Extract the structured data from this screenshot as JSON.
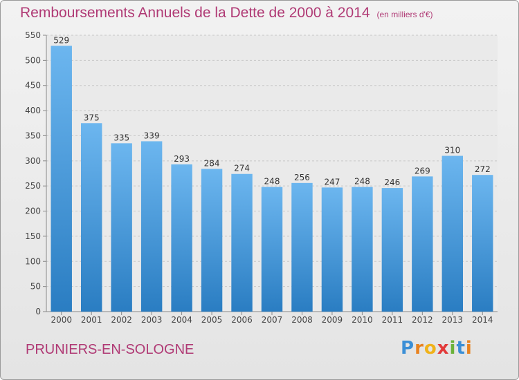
{
  "header": {
    "title": "Remboursements Annuels de la Dette de 2000 à 2014",
    "unit": "(en milliers d'€)"
  },
  "footer": {
    "commune": "PRUNIERS-EN-SOLOGNE",
    "brand": "Proxiti"
  },
  "colors": {
    "title": "#b03a75",
    "bar_top": "#6cb6ef",
    "bar_bottom": "#2a7dc2",
    "grid": "#c8c8c8"
  },
  "chart_data": {
    "type": "bar",
    "categories": [
      "2000",
      "2001",
      "2002",
      "2003",
      "2004",
      "2005",
      "2006",
      "2007",
      "2008",
      "2009",
      "2010",
      "2011",
      "2012",
      "2013",
      "2014"
    ],
    "values": [
      529,
      375,
      335,
      339,
      293,
      284,
      274,
      248,
      256,
      247,
      248,
      246,
      269,
      310,
      272
    ],
    "title": "Remboursements Annuels de la Dette de 2000 à 2014",
    "xlabel": "",
    "ylabel": "",
    "ylim": [
      0,
      550
    ],
    "yticks": [
      0,
      50,
      100,
      150,
      200,
      250,
      300,
      350,
      400,
      450,
      500,
      550
    ],
    "grid": true,
    "legend": "none"
  }
}
